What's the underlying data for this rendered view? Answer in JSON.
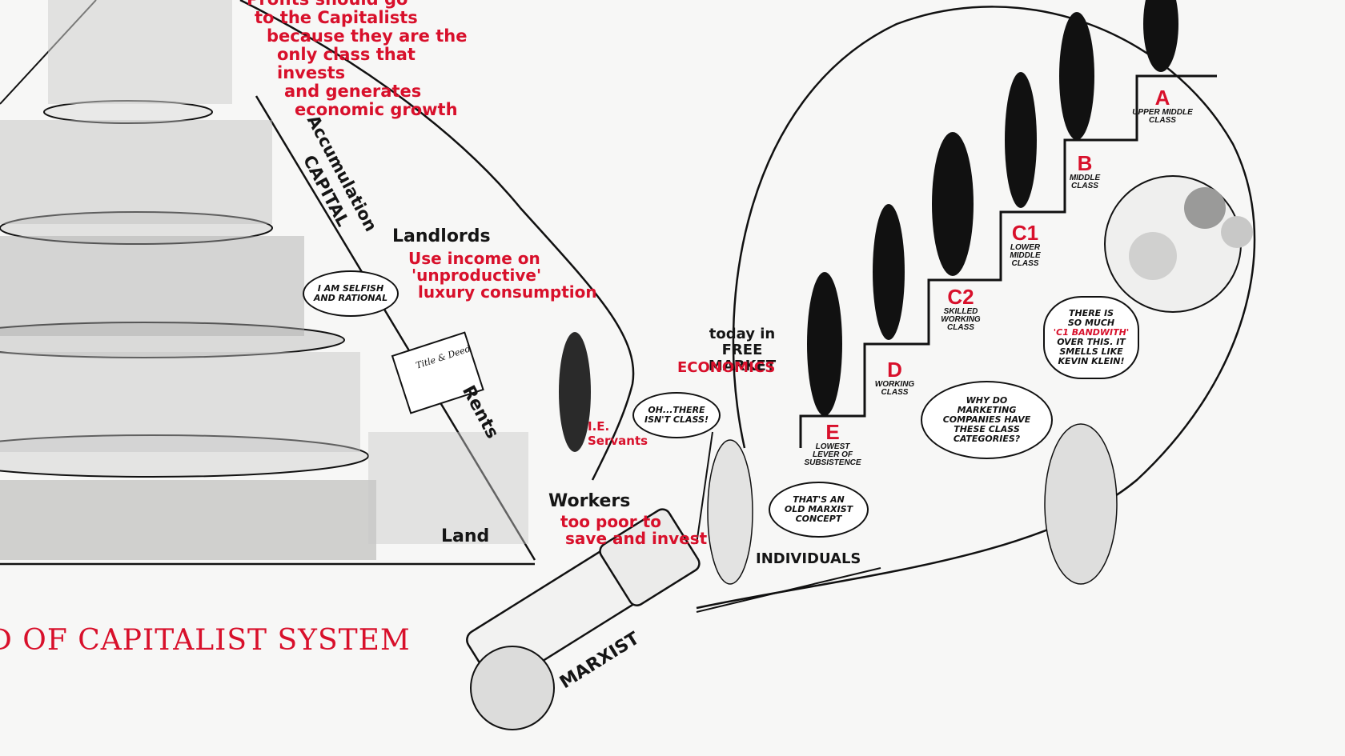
{
  "left_panel": {
    "profits_note": [
      "Profits should go",
      "to the Capitalists",
      "because they are the",
      "only class that invests",
      "and generates",
      "economic growth"
    ],
    "capital_label": "CAPITAL",
    "accumulation_label": "Accumulation",
    "landlords_label": "Landlords",
    "landlords_note": [
      "Use income on",
      "'unproductive'",
      "luxury consumption"
    ],
    "selfish_bubble": [
      "I AM SELFISH",
      "AND RATIONAL"
    ],
    "deed_label": "Title & Deed",
    "rents_label": "Rents",
    "servants_label": [
      "I.E.",
      "Servants"
    ],
    "workers_label": "Workers",
    "workers_note": [
      "too poor to",
      "save and invest"
    ],
    "land_label": "Land",
    "system_title": "D OF CAPITALIST SYSTEM"
  },
  "middle": {
    "today_label": [
      "today in",
      "FREE MARKET"
    ],
    "economics_label": "ECONOMICS",
    "no_class_bubble": [
      "OH...THERE",
      "ISN'T CLASS!"
    ],
    "old_concept_bubble": [
      "THAT'S AN",
      "OLD MARXIST",
      "CONCEPT"
    ],
    "individuals_label": "INDIVIDUALS",
    "telescope_label": "MARXIST"
  },
  "right_panel": {
    "grades": [
      {
        "letter": "A",
        "desc": [
          "UPPER MIDDLE",
          "CLASS"
        ]
      },
      {
        "letter": "B",
        "desc": [
          "MIDDLE",
          "CLASS"
        ]
      },
      {
        "letter": "C1",
        "desc": [
          "LOWER",
          "MIDDLE",
          "CLASS"
        ]
      },
      {
        "letter": "C2",
        "desc": [
          "SKILLED",
          "WORKING",
          "CLASS"
        ]
      },
      {
        "letter": "D",
        "desc": [
          "WORKING",
          "CLASS"
        ]
      },
      {
        "letter": "E",
        "desc": [
          "LOWEST",
          "LEVER OF",
          "SUBSISTENCE"
        ]
      }
    ],
    "c1_bubble": [
      "THERE IS",
      "SO MUCH",
      "'C1 BANDWITH'",
      "OVER THIS. IT",
      "SMELLS LIKE",
      "KEVIN KLEIN!"
    ],
    "marketing_bubble": [
      "WHY DO",
      "MARKETING",
      "COMPANIES HAVE",
      "THESE CLASS",
      "CATEGORIES?"
    ]
  },
  "colors": {
    "accent": "#d8102b",
    "ink": "#111111",
    "paper": "#f7f7f6"
  }
}
